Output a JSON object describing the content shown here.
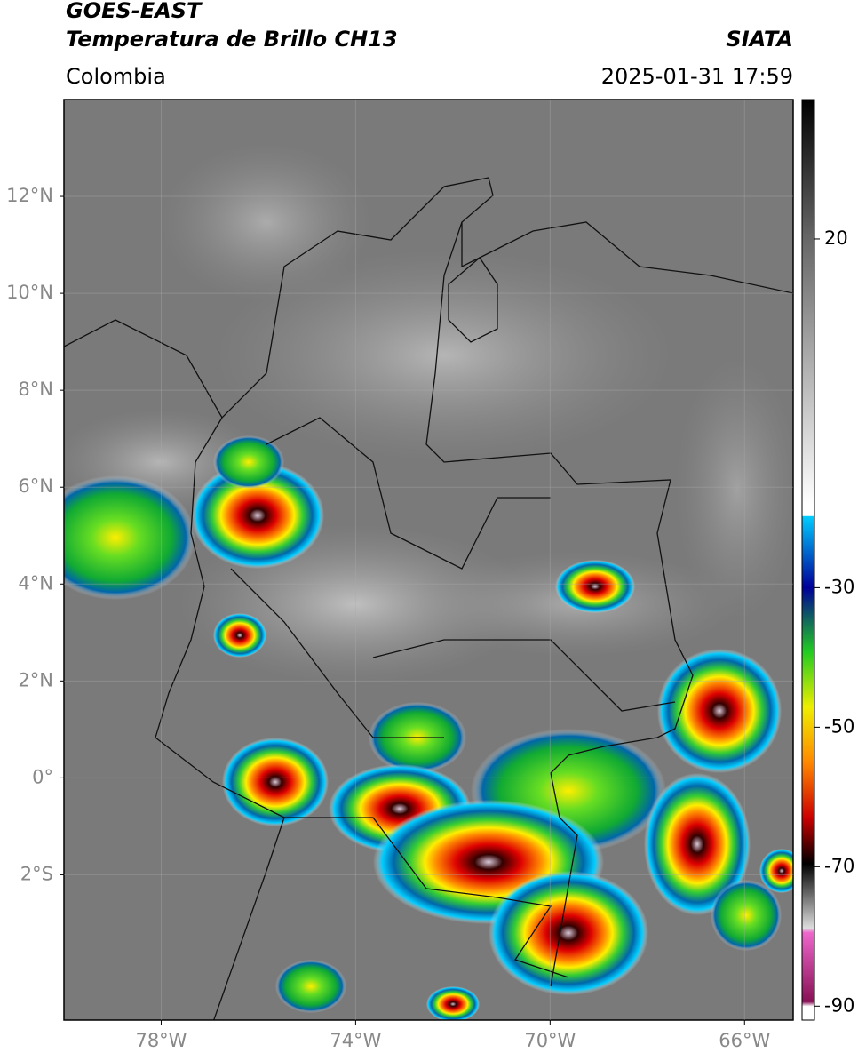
{
  "header": {
    "title": "GOES-EAST",
    "subtitle": "Temperatura de Brillo CH13",
    "source": "SIATA",
    "region": "Colombia",
    "datetime": "2025-01-31 17:59"
  },
  "map": {
    "xlim": [
      -80,
      -65
    ],
    "ylim": [
      -5,
      14
    ],
    "xticks": [
      {
        "value": -78,
        "label": "78°W"
      },
      {
        "value": -74,
        "label": "74°W"
      },
      {
        "value": -70,
        "label": "70°W"
      },
      {
        "value": -66,
        "label": "66°W"
      }
    ],
    "yticks": [
      {
        "value": 12,
        "label": "12°N"
      },
      {
        "value": 10,
        "label": "10°N"
      },
      {
        "value": 8,
        "label": "8°N"
      },
      {
        "value": 6,
        "label": "6°N"
      },
      {
        "value": 4,
        "label": "4°N"
      },
      {
        "value": 2,
        "label": "2°N"
      },
      {
        "value": 0,
        "label": "0°"
      },
      {
        "value": -2,
        "label": "2°S"
      }
    ]
  },
  "colorbar": {
    "lim": [
      -92,
      40
    ],
    "ticks": [
      20,
      -30,
      -50,
      -70,
      -90
    ]
  }
}
